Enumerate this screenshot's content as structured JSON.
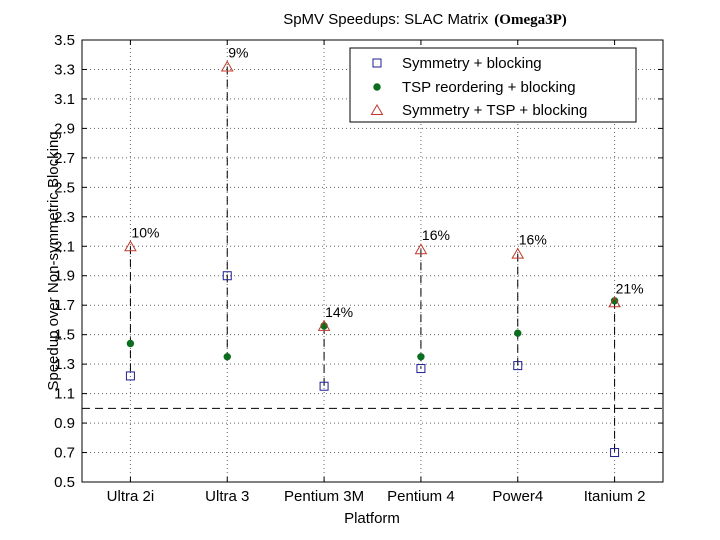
{
  "chart_data": {
    "type": "scatter",
    "title": "SpMV Speedups: SLAC Matrix",
    "title_suffix": "(Omega3P)",
    "xlabel": "Platform",
    "ylabel": "Speedup over Non-symmetric Blocking",
    "categories": [
      "Ultra 2i",
      "Ultra 3",
      "Pentium 3M",
      "Pentium 4",
      "Power4",
      "Itanium 2"
    ],
    "ylim": [
      0.5,
      3.5
    ],
    "yticks": [
      "0.5",
      "0.7",
      "0.9",
      "1.1",
      "1.3",
      "1.5",
      "1.7",
      "1.9",
      "2.1",
      "2.3",
      "2.5",
      "2.7",
      "2.9",
      "3.1",
      "3.3",
      "3.5"
    ],
    "grid": true,
    "baseline": 1.0,
    "legend_position": "top-right",
    "series": [
      {
        "name": "Symmetry + blocking",
        "marker": "square",
        "color": "#1f1f8f",
        "values": [
          1.22,
          1.9,
          1.15,
          1.27,
          1.29,
          0.7
        ]
      },
      {
        "name": "TSP reordering + blocking",
        "marker": "dot",
        "color": "#0a6e1e",
        "values": [
          1.44,
          1.35,
          1.56,
          1.35,
          1.51,
          1.73
        ]
      },
      {
        "name": "Symmetry + TSP + blocking",
        "marker": "triangle",
        "color": "#c0392b",
        "values": [
          2.1,
          3.32,
          1.56,
          2.08,
          2.05,
          1.72
        ]
      }
    ],
    "annotations": [
      "10%",
      "9%",
      "14%",
      "16%",
      "16%",
      "21%"
    ]
  }
}
